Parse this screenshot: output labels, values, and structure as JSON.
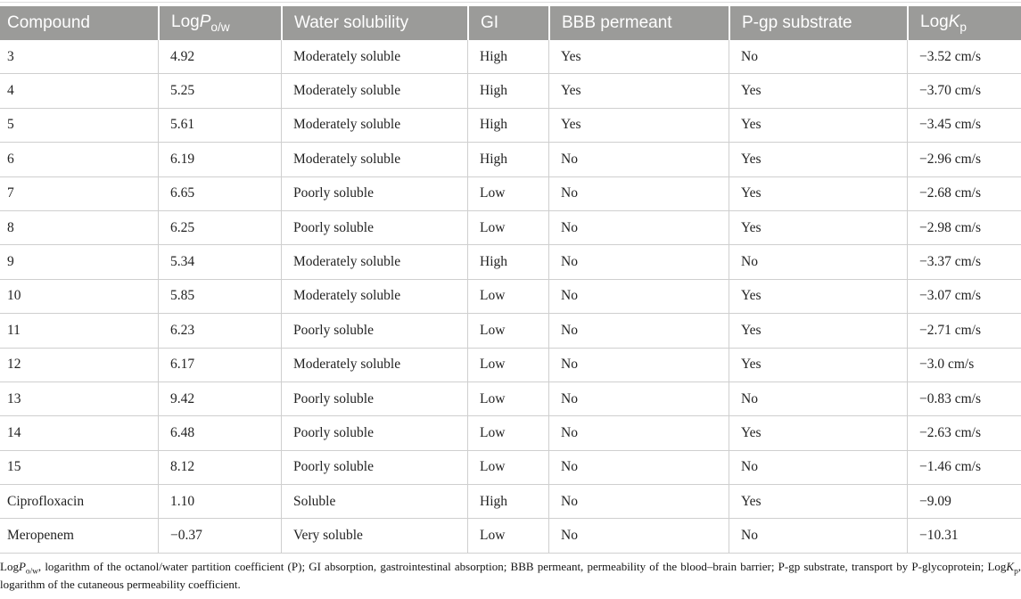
{
  "colors": {
    "header_bg": "#9b9b99",
    "header_text": "#ffffff",
    "grid": "#cfcfcf",
    "body_text": "#222222"
  },
  "table": {
    "columns": [
      {
        "key": "compound",
        "label_segments": [
          {
            "text": "Compound"
          }
        ]
      },
      {
        "key": "logp",
        "label_segments": [
          {
            "text": "Log"
          },
          {
            "text": "P",
            "italic": true
          },
          {
            "text": "o/w",
            "sub": true
          }
        ]
      },
      {
        "key": "solubility",
        "label_segments": [
          {
            "text": "Water solubility"
          }
        ]
      },
      {
        "key": "gi",
        "label_segments": [
          {
            "text": "GI"
          }
        ]
      },
      {
        "key": "bbb",
        "label_segments": [
          {
            "text": "BBB permeant"
          }
        ]
      },
      {
        "key": "pgp",
        "label_segments": [
          {
            "text": "P-gp substrate"
          }
        ]
      },
      {
        "key": "logkp",
        "label_segments": [
          {
            "text": "Log"
          },
          {
            "text": "K",
            "italic": true
          },
          {
            "text": "p",
            "sub": true
          }
        ]
      }
    ],
    "rows": [
      {
        "compound": "3",
        "logp": "4.92",
        "solubility": "Moderately soluble",
        "gi": "High",
        "bbb": "Yes",
        "pgp": "No",
        "logkp": "−3.52 cm/s"
      },
      {
        "compound": "4",
        "logp": "5.25",
        "solubility": "Moderately soluble",
        "gi": "High",
        "bbb": "Yes",
        "pgp": "Yes",
        "logkp": "−3.70 cm/s"
      },
      {
        "compound": "5",
        "logp": "5.61",
        "solubility": "Moderately soluble",
        "gi": "High",
        "bbb": "Yes",
        "pgp": "Yes",
        "logkp": "−3.45 cm/s"
      },
      {
        "compound": "6",
        "logp": "6.19",
        "solubility": "Moderately soluble",
        "gi": "High",
        "bbb": "No",
        "pgp": "Yes",
        "logkp": "−2.96 cm/s"
      },
      {
        "compound": "7",
        "logp": "6.65",
        "solubility": "Poorly soluble",
        "gi": "Low",
        "bbb": "No",
        "pgp": "Yes",
        "logkp": "−2.68 cm/s"
      },
      {
        "compound": "8",
        "logp": "6.25",
        "solubility": "Poorly soluble",
        "gi": "Low",
        "bbb": "No",
        "pgp": "Yes",
        "logkp": "−2.98 cm/s"
      },
      {
        "compound": "9",
        "logp": "5.34",
        "solubility": "Moderately soluble",
        "gi": "High",
        "bbb": "No",
        "pgp": "No",
        "logkp": "−3.37 cm/s"
      },
      {
        "compound": "10",
        "logp": "5.85",
        "solubility": "Moderately soluble",
        "gi": "Low",
        "bbb": "No",
        "pgp": "Yes",
        "logkp": "−3.07 cm/s"
      },
      {
        "compound": "11",
        "logp": "6.23",
        "solubility": "Poorly soluble",
        "gi": "Low",
        "bbb": "No",
        "pgp": "Yes",
        "logkp": "−2.71 cm/s"
      },
      {
        "compound": "12",
        "logp": "6.17",
        "solubility": "Moderately soluble",
        "gi": "Low",
        "bbb": "No",
        "pgp": "Yes",
        "logkp": "−3.0 cm/s"
      },
      {
        "compound": "13",
        "logp": "9.42",
        "solubility": "Poorly soluble",
        "gi": "Low",
        "bbb": "No",
        "pgp": "No",
        "logkp": "−0.83 cm/s"
      },
      {
        "compound": "14",
        "logp": "6.48",
        "solubility": "Poorly soluble",
        "gi": "Low",
        "bbb": "No",
        "pgp": "Yes",
        "logkp": "−2.63 cm/s"
      },
      {
        "compound": "15",
        "logp": "8.12",
        "solubility": "Poorly soluble",
        "gi": "Low",
        "bbb": "No",
        "pgp": "No",
        "logkp": "−1.46 cm/s"
      },
      {
        "compound": "Ciprofloxacin",
        "logp": "1.10",
        "solubility": "Soluble",
        "gi": "High",
        "bbb": "No",
        "pgp": "Yes",
        "logkp": "−9.09"
      },
      {
        "compound": "Meropenem",
        "logp": "−0.37",
        "solubility": "Very soluble",
        "gi": "Low",
        "bbb": "No",
        "pgp": "No",
        "logkp": "−10.31"
      }
    ]
  },
  "footnote": {
    "segments": [
      {
        "text": "Log"
      },
      {
        "text": "P",
        "italic": true
      },
      {
        "text": "o/w",
        "sub": true
      },
      {
        "text": ", logarithm of the octanol/water partition coefficient (P); GI absorption, gastrointestinal absorption; BBB permeant, permeability of the blood–brain barrier; P-gp substrate, transport by P-glycoprotein; Log"
      },
      {
        "text": "K",
        "italic": true
      },
      {
        "text": "p",
        "sub": true
      },
      {
        "text": ", logarithm of the cutaneous permeability coefficient."
      }
    ]
  }
}
